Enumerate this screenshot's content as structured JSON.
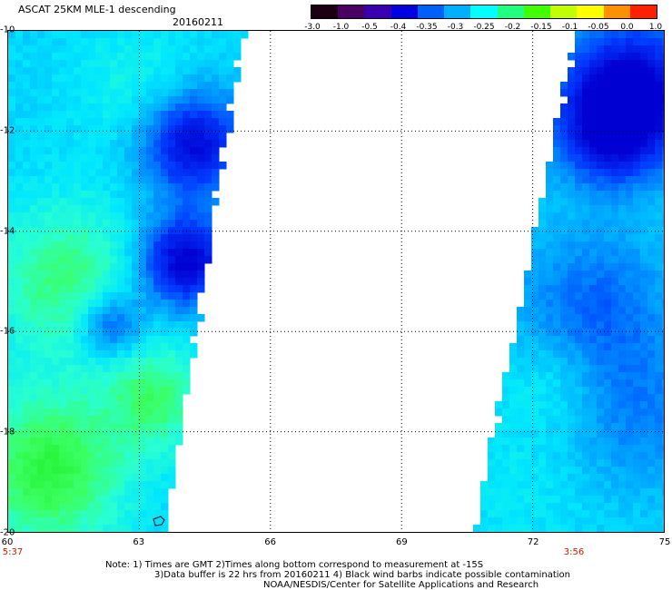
{
  "header": {
    "title": "ASCAT 25KM MLE-1 descending",
    "date": "20160211"
  },
  "colorbar": {
    "labels": [
      "-3.0",
      "-1.0",
      "-0.5",
      "-0.4",
      "-0.35",
      "-0.3",
      "-0.25",
      "-0.2",
      "-0.15",
      "-0.1",
      "-0.05",
      "0.0",
      "1.0"
    ],
    "colors": [
      "#1a0010",
      "#4a0060",
      "#3a00b0",
      "#0000e0",
      "#0060ff",
      "#00b0ff",
      "#00ffff",
      "#20ff80",
      "#40ff00",
      "#c0ff00",
      "#ffff00",
      "#ff9000",
      "#ff2000"
    ]
  },
  "map": {
    "lat_labels": [
      "-10",
      "-12",
      "-14",
      "-16",
      "-18",
      "-20"
    ],
    "lon_labels": [
      "60",
      "63",
      "66",
      "69",
      "72",
      "75"
    ],
    "time_labels": [
      "5:37",
      "3:56"
    ]
  },
  "notes": {
    "line1": "Note: 1) Times are GMT 2)Times along bottom correspond to measurement at -15S",
    "line2": "3)Data buffer is 22 hrs from 20160211 4) Black wind barbs indicate possible contamination",
    "line3": "NOAA/NESDIS/Center for Satellite Applications and Research"
  }
}
